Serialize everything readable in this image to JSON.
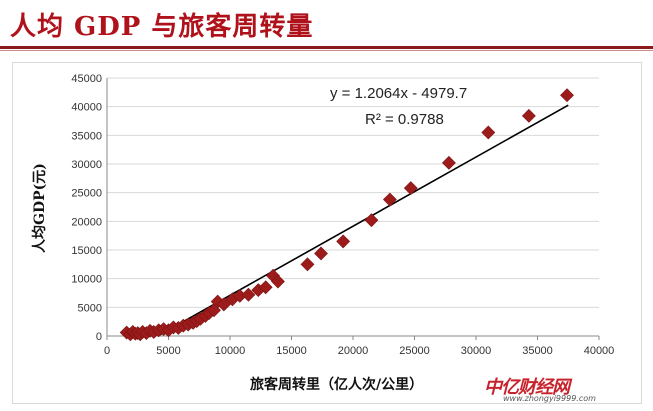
{
  "page": {
    "title": "人均 GDP 与旅客周转量",
    "watermark": "中亿财经网",
    "watermark_url": "www.zhongyi9999.com"
  },
  "chart_data": {
    "type": "scatter",
    "title": "",
    "xlabel": "旅客周转里（亿人次/公里）",
    "ylabel": "人均GDP(元)",
    "xlim": [
      0,
      40000
    ],
    "ylim": [
      0,
      45000
    ],
    "x_ticks": [
      0,
      5000,
      10000,
      15000,
      20000,
      25000,
      30000,
      35000,
      40000
    ],
    "y_ticks": [
      0,
      5000,
      10000,
      15000,
      20000,
      25000,
      30000,
      35000,
      40000,
      45000
    ],
    "grid": {
      "horizontal": true,
      "vertical": false
    },
    "marker": "diamond",
    "marker_color": "#9e1b1b",
    "trendline_color": "#000000",
    "trendline": {
      "slope": 1.2064,
      "intercept": -4979.7,
      "x_start": 4200,
      "x_end": 37500
    },
    "equation_text": "y = 1.2064x - 4979.7",
    "r2_text": "R² = 0.9788",
    "points": [
      {
        "x": 1600,
        "y": 600
      },
      {
        "x": 1900,
        "y": 300
      },
      {
        "x": 2100,
        "y": 700
      },
      {
        "x": 2300,
        "y": 400
      },
      {
        "x": 2500,
        "y": 500
      },
      {
        "x": 2700,
        "y": 300
      },
      {
        "x": 2900,
        "y": 700
      },
      {
        "x": 3200,
        "y": 500
      },
      {
        "x": 3500,
        "y": 900
      },
      {
        "x": 3800,
        "y": 700
      },
      {
        "x": 4200,
        "y": 1000
      },
      {
        "x": 4600,
        "y": 1200
      },
      {
        "x": 5000,
        "y": 1000
      },
      {
        "x": 5400,
        "y": 1500
      },
      {
        "x": 5800,
        "y": 1400
      },
      {
        "x": 6200,
        "y": 1800
      },
      {
        "x": 6600,
        "y": 2000
      },
      {
        "x": 7000,
        "y": 2300
      },
      {
        "x": 7300,
        "y": 2600
      },
      {
        "x": 7600,
        "y": 3000
      },
      {
        "x": 8000,
        "y": 3500
      },
      {
        "x": 8300,
        "y": 4000
      },
      {
        "x": 8700,
        "y": 4500
      },
      {
        "x": 9000,
        "y": 6000
      },
      {
        "x": 9500,
        "y": 5500
      },
      {
        "x": 10200,
        "y": 6400
      },
      {
        "x": 10800,
        "y": 7000
      },
      {
        "x": 11500,
        "y": 7200
      },
      {
        "x": 12300,
        "y": 8000
      },
      {
        "x": 12900,
        "y": 8500
      },
      {
        "x": 13500,
        "y": 10500
      },
      {
        "x": 13900,
        "y": 9500
      },
      {
        "x": 16300,
        "y": 12500
      },
      {
        "x": 17400,
        "y": 14400
      },
      {
        "x": 19200,
        "y": 16500
      },
      {
        "x": 21500,
        "y": 20200
      },
      {
        "x": 23000,
        "y": 23800
      },
      {
        "x": 24700,
        "y": 25800
      },
      {
        "x": 27800,
        "y": 30200
      },
      {
        "x": 31000,
        "y": 35500
      },
      {
        "x": 34300,
        "y": 38400
      },
      {
        "x": 37400,
        "y": 42000
      }
    ]
  }
}
